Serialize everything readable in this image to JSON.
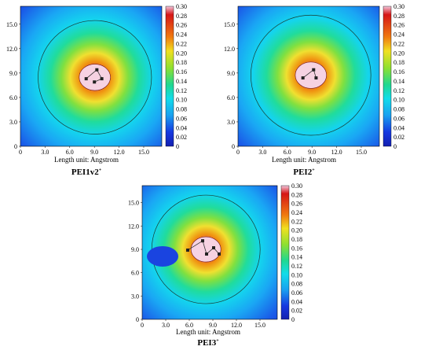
{
  "chart_data": [
    {
      "type": "heatmap",
      "title": "PEI1v2",
      "title_superscript": "+",
      "xlabel": "Length unit: Angstrom",
      "x_ticks": [
        "0",
        "3.0",
        "6.0",
        "9.0",
        "12.0",
        "15.0"
      ],
      "y_ticks": [
        "0",
        "3.0",
        "6.0",
        "9.0",
        "12.0",
        "15.0"
      ],
      "xlim": [
        0,
        17.2
      ],
      "ylim": [
        0,
        17.2
      ],
      "colorbar": {
        "min": 0,
        "max": 0.3,
        "ticks": [
          "0.30",
          "0.28",
          "0.26",
          "0.24",
          "0.22",
          "0.20",
          "0.18",
          "0.16",
          "0.14",
          "0.12",
          "0.10",
          "0.08",
          "0.06",
          "0.04",
          "0.02",
          "0"
        ]
      },
      "boundary_circle_radius": 6.9,
      "atoms": [
        [
          8.0,
          8.3
        ],
        [
          9.3,
          9.4
        ],
        [
          9.9,
          8.3
        ],
        [
          9.0,
          7.9
        ]
      ]
    },
    {
      "type": "heatmap",
      "title": "PEI2",
      "title_superscript": "+",
      "xlabel": "Length unit: Angstrom",
      "x_ticks": [
        "0",
        "3.0",
        "6.0",
        "9.0",
        "12.0",
        "15.0"
      ],
      "y_ticks": [
        "0",
        "3.0",
        "6.0",
        "9.0",
        "12.0",
        "15.0"
      ],
      "xlim": [
        0,
        17.2
      ],
      "ylim": [
        0,
        17.2
      ],
      "colorbar": {
        "min": 0,
        "max": 0.3,
        "ticks": [
          "0.30",
          "0.28",
          "0.26",
          "0.24",
          "0.22",
          "0.20",
          "0.18",
          "0.16",
          "0.14",
          "0.12",
          "0.10",
          "0.08",
          "0.06",
          "0.04",
          "0.02",
          "0"
        ]
      },
      "boundary_circle_radius": 7.3,
      "atoms": [
        [
          7.9,
          8.4
        ],
        [
          9.2,
          9.4
        ],
        [
          9.5,
          8.4
        ]
      ]
    },
    {
      "type": "heatmap",
      "title": "PEI3",
      "title_superscript": "+",
      "xlabel": "Length unit: Angstrom",
      "x_ticks": [
        "0",
        "3.0",
        "6.0",
        "9.0",
        "12.0",
        "15.0"
      ],
      "y_ticks": [
        "0",
        "3.0",
        "6.0",
        "9.0",
        "12.0",
        "15.0"
      ],
      "xlim": [
        0,
        17.2
      ],
      "ylim": [
        0,
        17.2
      ],
      "colorbar": {
        "min": 0,
        "max": 0.3,
        "ticks": [
          "0.30",
          "0.28",
          "0.26",
          "0.24",
          "0.22",
          "0.20",
          "0.18",
          "0.16",
          "0.14",
          "0.12",
          "0.10",
          "0.08",
          "0.06",
          "0.04",
          "0.02",
          "0"
        ]
      },
      "boundary_circle_radius": 6.9,
      "atoms": [
        [
          5.8,
          8.9
        ],
        [
          7.7,
          10.1
        ],
        [
          8.2,
          8.4
        ],
        [
          9.1,
          9.2
        ],
        [
          9.8,
          8.4
        ]
      ]
    }
  ],
  "colors": {
    "low": "#0a2bd6",
    "mid": "#1fe0e6",
    "high": "#d81010",
    "peak": "#f4c2d8"
  }
}
